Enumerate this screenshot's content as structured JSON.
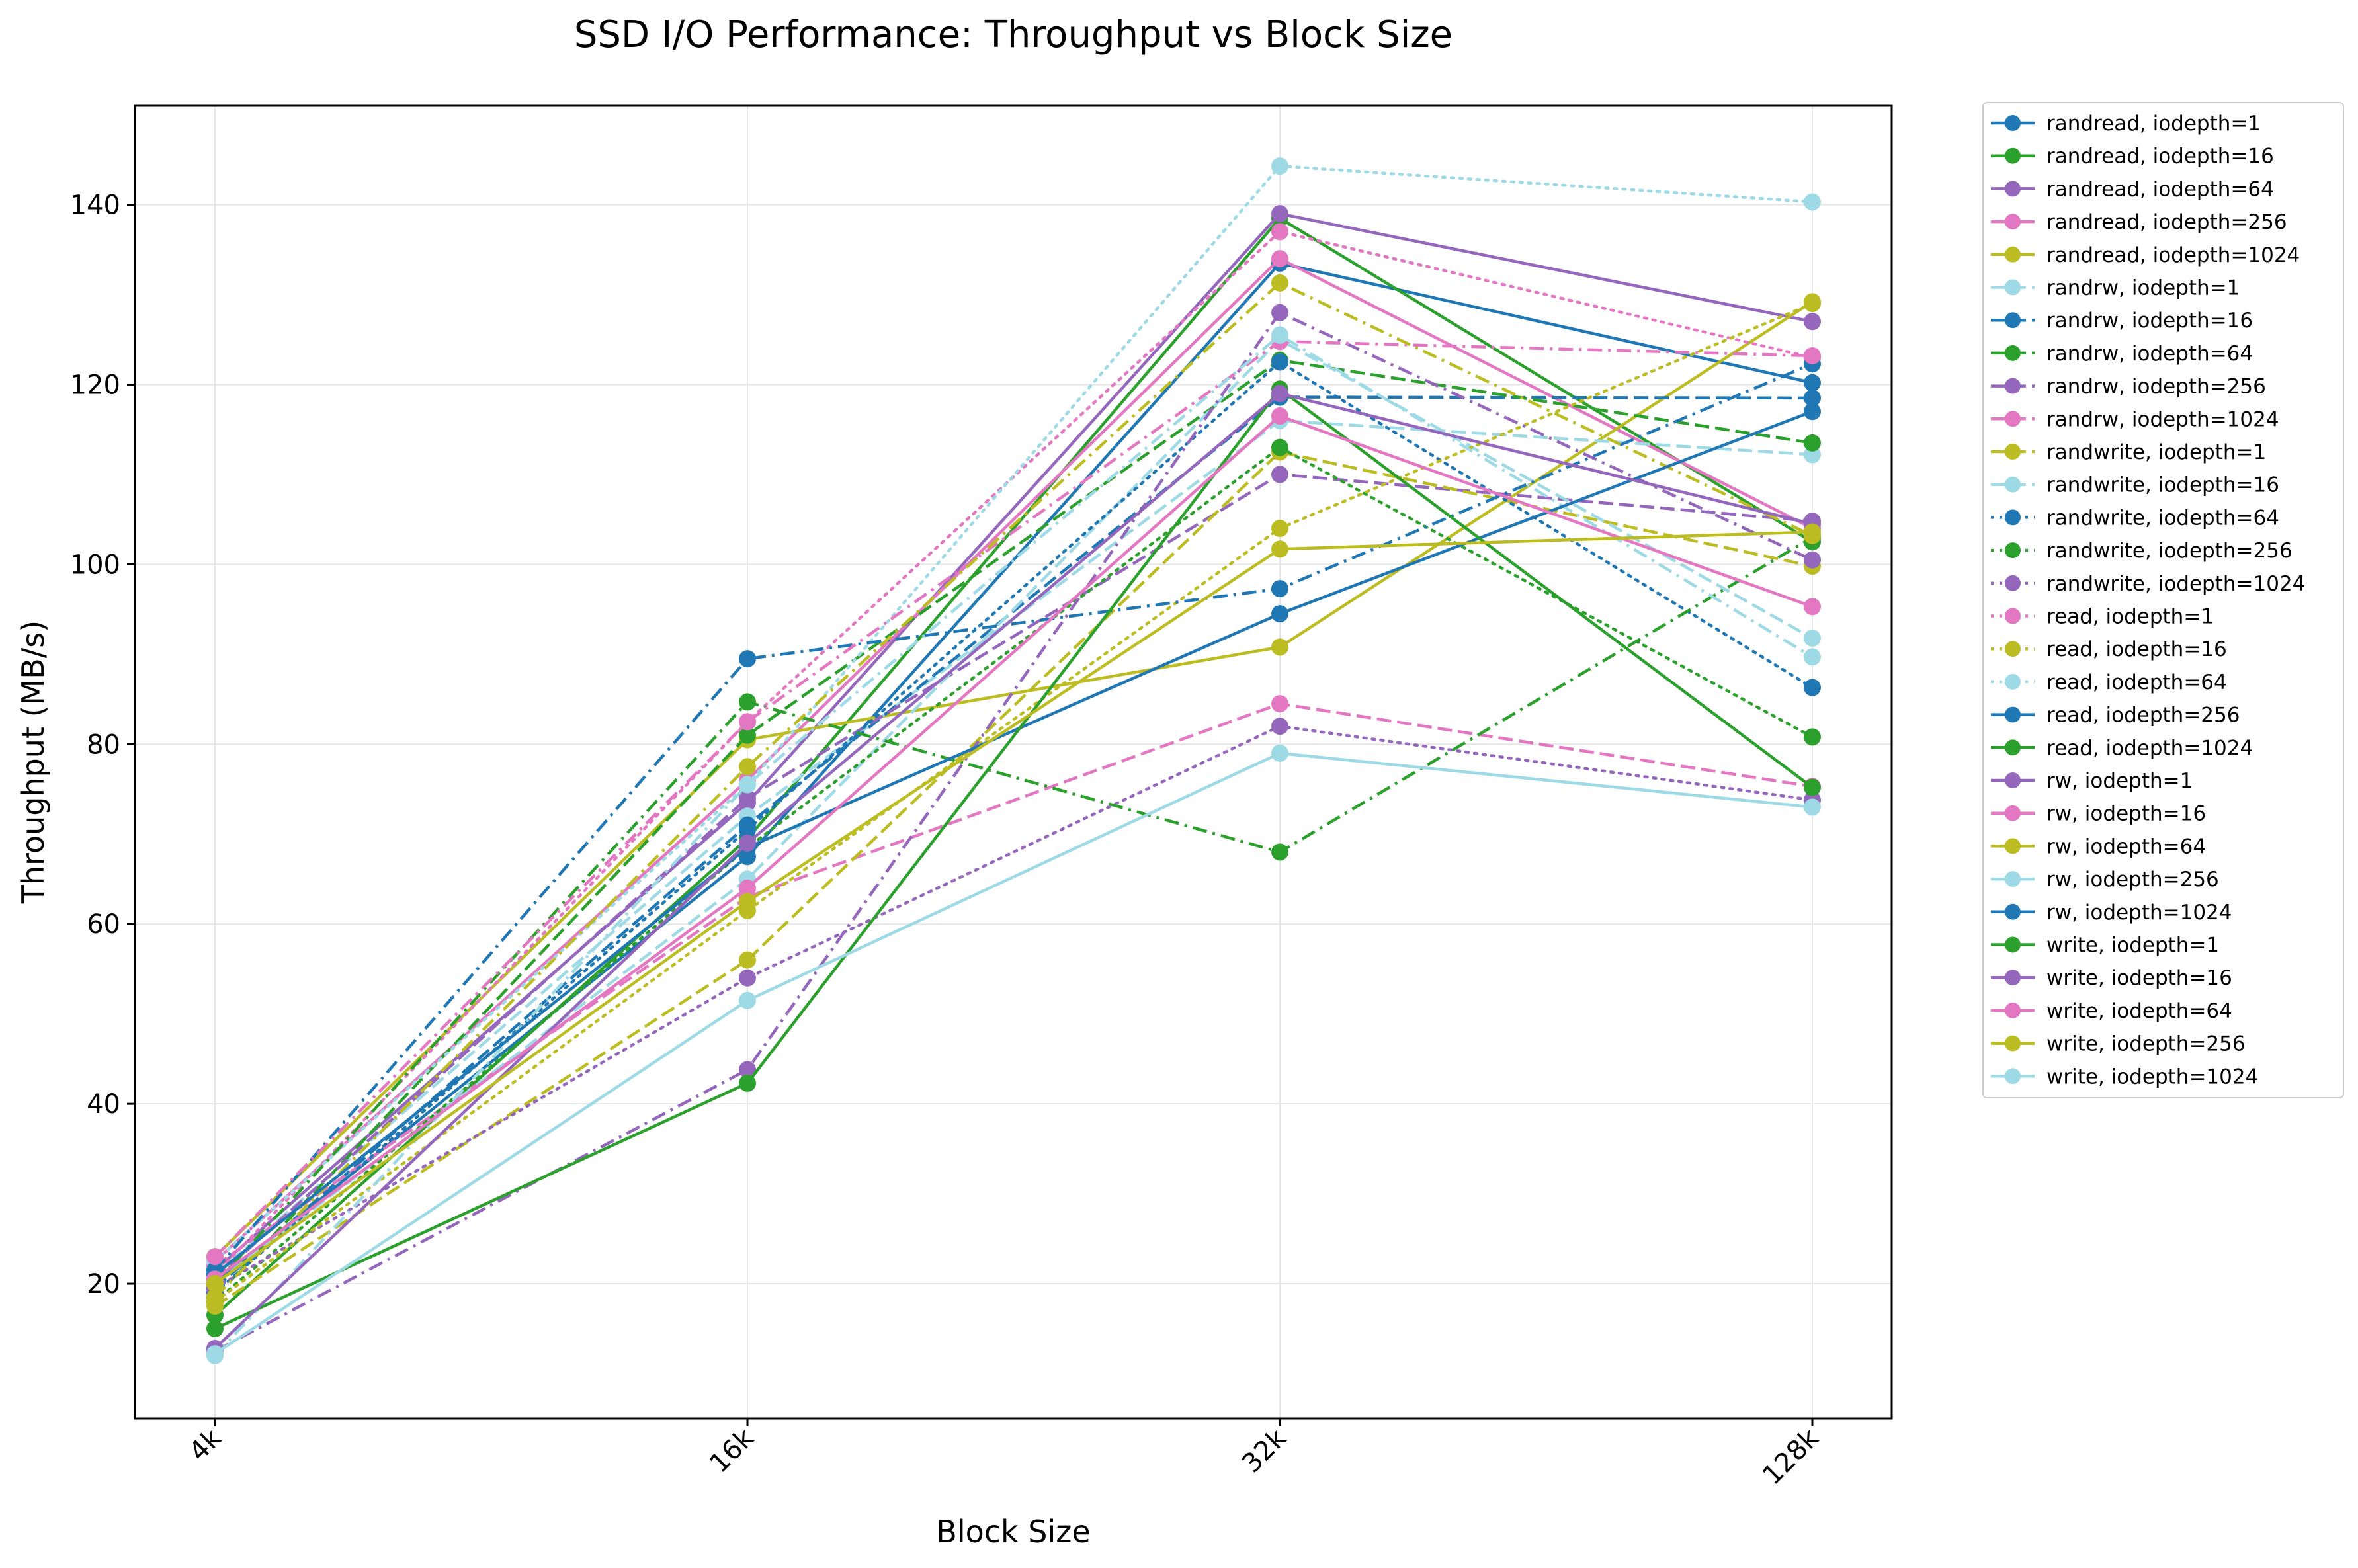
{
  "chart_data": {
    "type": "line",
    "title": "SSD I/O Performance: Throughput vs Block Size",
    "xlabel": "Block Size",
    "ylabel": "Throughput (MB/s)",
    "categories": [
      "4k",
      "16k",
      "32k",
      "128k"
    ],
    "ylim": [
      5,
      151
    ],
    "yticks": [
      20,
      40,
      60,
      80,
      100,
      120,
      140
    ],
    "grid": true,
    "legend_position": "outside-right",
    "series": [
      {
        "name": "randread, iodepth=1",
        "color": "#1f77b4",
        "dash": "solid",
        "values": [
          20.0,
          67.5,
          133.5,
          120.2
        ]
      },
      {
        "name": "randread, iodepth=16",
        "color": "#2ca02c",
        "dash": "solid",
        "values": [
          16.5,
          69.5,
          138.5,
          102.5
        ]
      },
      {
        "name": "randread, iodepth=64",
        "color": "#9467bd",
        "dash": "solid",
        "values": [
          21.5,
          73.5,
          139.0,
          127.0
        ]
      },
      {
        "name": "randread, iodepth=256",
        "color": "#e377c2",
        "dash": "solid",
        "values": [
          22.5,
          76.0,
          134.0,
          104.0
        ]
      },
      {
        "name": "randread, iodepth=1024",
        "color": "#bcbd22",
        "dash": "solid",
        "values": [
          23.0,
          80.5,
          90.8,
          129.2
        ]
      },
      {
        "name": "randrw, iodepth=1",
        "color": "#9edae5",
        "dash": "dashed",
        "values": [
          21.0,
          72.0,
          116.0,
          112.2
        ]
      },
      {
        "name": "randrw, iodepth=16",
        "color": "#1f77b4",
        "dash": "dashed",
        "values": [
          19.5,
          71.0,
          118.6,
          118.5
        ]
      },
      {
        "name": "randrw, iodepth=64",
        "color": "#2ca02c",
        "dash": "dashed",
        "values": [
          18.5,
          81.0,
          122.7,
          113.5
        ]
      },
      {
        "name": "randrw, iodepth=256",
        "color": "#9467bd",
        "dash": "dashed",
        "values": [
          20.5,
          74.0,
          110.0,
          104.8
        ]
      },
      {
        "name": "randrw, iodepth=1024",
        "color": "#e377c2",
        "dash": "dashed",
        "values": [
          22.0,
          63.0,
          84.5,
          75.3
        ]
      },
      {
        "name": "randwrite, iodepth=1",
        "color": "#bcbd22",
        "dash": "dashed",
        "values": [
          17.5,
          56.0,
          112.5,
          99.8
        ]
      },
      {
        "name": "randwrite, iodepth=16",
        "color": "#9edae5",
        "dash": "dashed",
        "values": [
          20.0,
          65.0,
          125.0,
          91.8
        ]
      },
      {
        "name": "randwrite, iodepth=64",
        "color": "#1f77b4",
        "dash": "dotted",
        "values": [
          19.0,
          70.5,
          122.5,
          86.3
        ]
      },
      {
        "name": "randwrite, iodepth=256",
        "color": "#2ca02c",
        "dash": "dotted",
        "values": [
          18.0,
          68.5,
          113.0,
          80.8
        ]
      },
      {
        "name": "randwrite, iodepth=1024",
        "color": "#9467bd",
        "dash": "dotted",
        "values": [
          19.5,
          54.0,
          82.0,
          73.8
        ]
      },
      {
        "name": "read, iodepth=1",
        "color": "#e377c2",
        "dash": "dotted",
        "values": [
          21.0,
          82.5,
          137.0,
          123.0
        ]
      },
      {
        "name": "read, iodepth=16",
        "color": "#bcbd22",
        "dash": "dotted",
        "values": [
          18.0,
          61.5,
          104.0,
          129.0
        ]
      },
      {
        "name": "read, iodepth=64",
        "color": "#9edae5",
        "dash": "dotted",
        "values": [
          22.5,
          75.5,
          144.3,
          140.3
        ]
      },
      {
        "name": "read, iodepth=256",
        "color": "#1f77b4",
        "dash": "dashdot",
        "values": [
          21.5,
          89.5,
          97.3,
          122.3
        ]
      },
      {
        "name": "read, iodepth=1024",
        "color": "#2ca02c",
        "dash": "dashdot",
        "values": [
          20.0,
          84.7,
          68.0,
          103.0
        ]
      },
      {
        "name": "rw, iodepth=1",
        "color": "#9467bd",
        "dash": "dashdot",
        "values": [
          12.5,
          43.8,
          128.0,
          100.5
        ]
      },
      {
        "name": "rw, iodepth=16",
        "color": "#e377c2",
        "dash": "dashdot",
        "values": [
          23.0,
          82.5,
          124.8,
          123.2
        ]
      },
      {
        "name": "rw, iodepth=64",
        "color": "#bcbd22",
        "dash": "dashdot",
        "values": [
          18.5,
          77.5,
          131.3,
          103.2
        ]
      },
      {
        "name": "rw, iodepth=256",
        "color": "#9edae5",
        "dash": "dashdot",
        "values": [
          12.0,
          75.5,
          125.5,
          89.7
        ]
      },
      {
        "name": "rw, iodepth=1024",
        "color": "#1f77b4",
        "dash": "solid",
        "values": [
          21.0,
          68.5,
          94.5,
          117.0
        ]
      },
      {
        "name": "write, iodepth=1",
        "color": "#2ca02c",
        "dash": "solid",
        "values": [
          15.0,
          42.3,
          119.5,
          75.2
        ]
      },
      {
        "name": "write, iodepth=16",
        "color": "#9467bd",
        "dash": "solid",
        "values": [
          12.8,
          69.0,
          119.0,
          104.5
        ]
      },
      {
        "name": "write, iodepth=64",
        "color": "#e377c2",
        "dash": "solid",
        "values": [
          20.5,
          64.0,
          116.5,
          95.3
        ]
      },
      {
        "name": "write, iodepth=256",
        "color": "#bcbd22",
        "dash": "solid",
        "values": [
          20.0,
          62.5,
          101.7,
          103.6
        ]
      },
      {
        "name": "write, iodepth=1024",
        "color": "#9edae5",
        "dash": "solid",
        "values": [
          12.2,
          51.5,
          79.0,
          73.0
        ]
      }
    ]
  }
}
